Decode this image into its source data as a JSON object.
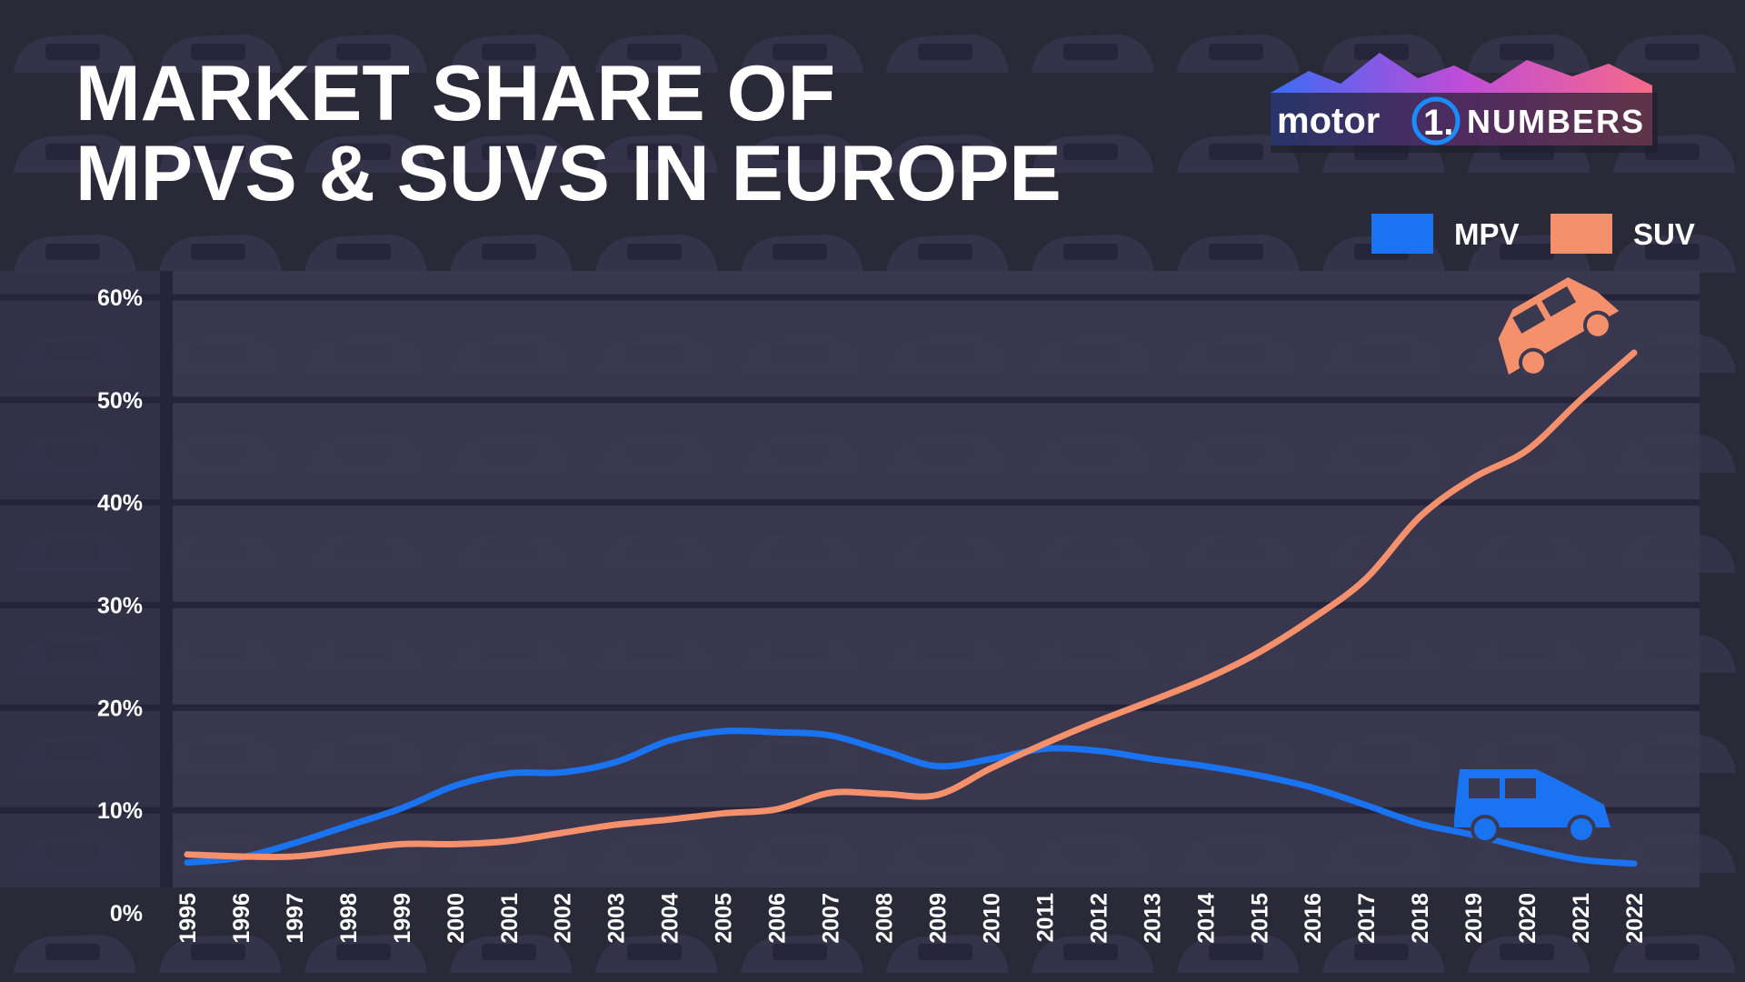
{
  "logo": {
    "brand": "motor",
    "number": "1.",
    "product": "NUMBERS"
  },
  "chart_data": {
    "type": "line",
    "title": [
      "MARKET SHARE OF",
      "MPVS & SUVS IN EUROPE"
    ],
    "categories": [
      "1995",
      "1996",
      "1997",
      "1998",
      "1999",
      "2000",
      "2001",
      "2002",
      "2003",
      "2004",
      "2005",
      "2006",
      "2007",
      "2008",
      "2009",
      "2010",
      "2011",
      "2012",
      "2013",
      "2014",
      "2015",
      "2016",
      "2017",
      "2018",
      "2019",
      "2020",
      "2021",
      "2022"
    ],
    "series": [
      {
        "name": "MPV",
        "color": "#1a73f0",
        "values": [
          4.9,
          5.4,
          6.8,
          8.5,
          10.2,
          12.4,
          13.6,
          13.7,
          14.7,
          16.8,
          17.7,
          17.6,
          17.3,
          15.8,
          14.3,
          15.0,
          16.0,
          15.8,
          15.0,
          14.3,
          13.4,
          12.2,
          10.5,
          8.7,
          7.6,
          6.3,
          5.2,
          4.8
        ]
      },
      {
        "name": "SUV",
        "color": "#f4906c",
        "values": [
          5.7,
          5.5,
          5.5,
          6.1,
          6.7,
          6.7,
          7.0,
          7.8,
          8.6,
          9.1,
          9.7,
          10.1,
          11.7,
          11.6,
          11.5,
          14.1,
          16.5,
          18.7,
          20.7,
          22.8,
          25.4,
          28.7,
          32.6,
          38.6,
          42.4,
          45.1,
          50.0,
          54.6
        ]
      }
    ],
    "ylim": [
      0,
      60
    ],
    "yticks": [
      {
        "value": 0,
        "label": "0%"
      },
      {
        "value": 10,
        "label": "10%"
      },
      {
        "value": 20,
        "label": "20%"
      },
      {
        "value": 30,
        "label": "30%"
      },
      {
        "value": 40,
        "label": "40%"
      },
      {
        "value": 50,
        "label": "50%"
      },
      {
        "value": 60,
        "label": "60%"
      }
    ],
    "grid": true,
    "legend": "top-right"
  }
}
